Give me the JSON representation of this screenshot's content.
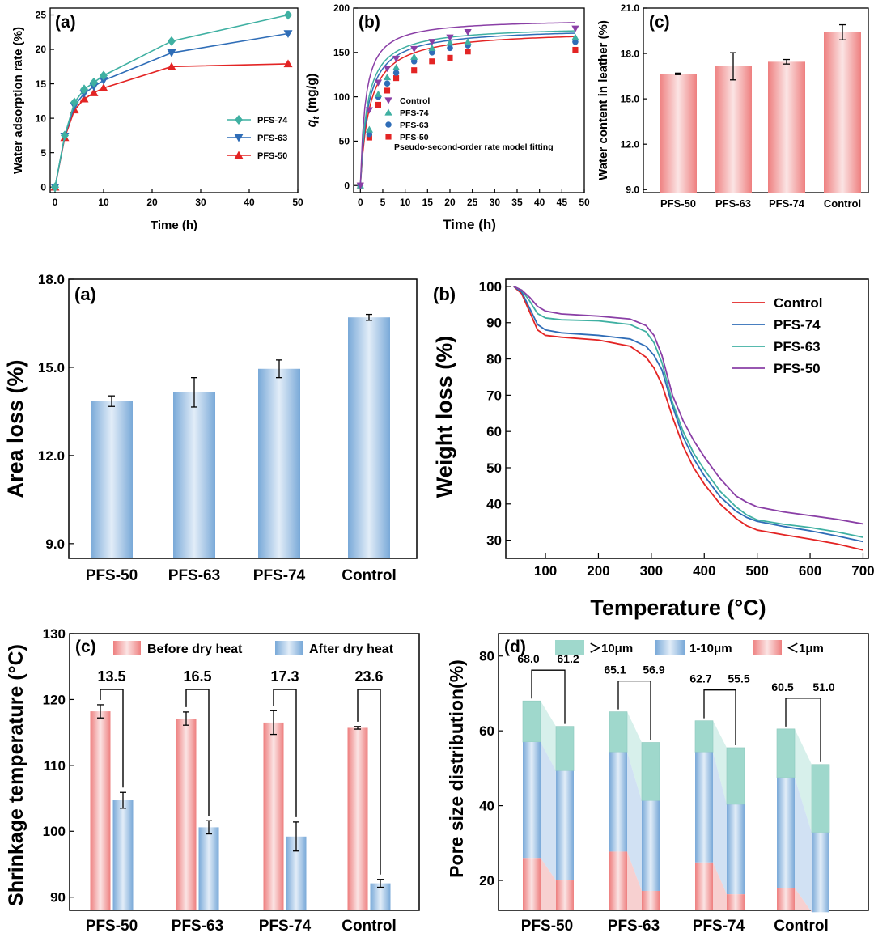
{
  "colors": {
    "pfs74": "#3fb0a2",
    "pfs63": "#2f6db7",
    "pfs50": "#e32424",
    "control": "#8a3fa6",
    "red_bar": "#f08b8b",
    "blue_bar": "#8fb8e0",
    "teal_fill": "#cdece6",
    "blue_fill": "#c6daf0",
    "red_fill": "#f5c4c4"
  },
  "chart_data": [
    {
      "id": "top_a",
      "type": "line",
      "panel_label": "(a)",
      "xlabel": "Time (h)",
      "ylabel": "Water adsorption rate (%)",
      "xlim": [
        -1,
        50
      ],
      "ylim": [
        -0.8,
        26
      ],
      "xticks": [
        0,
        10,
        20,
        30,
        40,
        50
      ],
      "yticks": [
        0,
        5,
        10,
        15,
        20,
        25
      ],
      "legend": "bottom-right",
      "series": [
        {
          "name": "PFS-74",
          "color": "#3fb0a2",
          "marker": "diamond",
          "x": [
            0,
            2,
            4,
            6,
            8,
            10,
            24,
            48
          ],
          "y": [
            0,
            7.5,
            12.3,
            14.2,
            15.2,
            16.2,
            21.2,
            25.0
          ]
        },
        {
          "name": "PFS-63",
          "color": "#2f6db7",
          "marker": "triangle-down",
          "x": [
            0,
            2,
            4,
            6,
            8,
            10,
            24,
            48
          ],
          "y": [
            0,
            7.4,
            11.8,
            13.6,
            14.6,
            15.5,
            19.5,
            22.3
          ]
        },
        {
          "name": "PFS-50",
          "color": "#e32424",
          "marker": "triangle-up",
          "x": [
            0,
            2,
            4,
            6,
            8,
            10,
            24,
            48
          ],
          "y": [
            0,
            7.2,
            11.2,
            12.8,
            13.7,
            14.4,
            17.5,
            17.9
          ]
        }
      ]
    },
    {
      "id": "top_b",
      "type": "scatter",
      "panel_label": "(b)",
      "xlabel": "Time (h)",
      "ylabel_main": "q",
      "ylabel_sub": "t",
      "ylabel_rest": " (mg/g)",
      "xlim": [
        -1.5,
        50
      ],
      "ylim": [
        -8,
        200
      ],
      "xticks": [
        0,
        5,
        10,
        15,
        20,
        25,
        30,
        35,
        40,
        45,
        50
      ],
      "yticks": [
        0,
        50,
        100,
        150,
        200
      ],
      "legend": "center-right",
      "legend_note": "Pseudo-second-order rate model fitting",
      "series": [
        {
          "name": "Control",
          "color": "#8a3fa6",
          "marker": "triangle-down",
          "qe": 188,
          "k": 0.0047,
          "x": [
            0,
            2,
            4,
            6,
            8,
            12,
            16,
            20,
            24,
            48
          ],
          "y": [
            0,
            85,
            116,
            132,
            143,
            154,
            162,
            167,
            173,
            177
          ]
        },
        {
          "name": "PFS-74",
          "color": "#3fb0a2",
          "marker": "triangle-up",
          "qe": 180,
          "k": 0.0036,
          "x": [
            0,
            2,
            4,
            6,
            8,
            12,
            16,
            20,
            24,
            48
          ],
          "y": [
            0,
            63,
            103,
            122,
            133,
            145,
            155,
            161,
            162,
            167
          ]
        },
        {
          "name": "PFS-63",
          "color": "#2f6db7",
          "marker": "circle",
          "qe": 178,
          "k": 0.0032,
          "x": [
            0,
            2,
            4,
            6,
            8,
            12,
            16,
            20,
            24,
            48
          ],
          "y": [
            0,
            58,
            100,
            115,
            127,
            140,
            150,
            155,
            158,
            162
          ]
        },
        {
          "name": "PFS-50",
          "color": "#e32424",
          "marker": "square",
          "qe": 175,
          "k": 0.0028,
          "x": [
            0,
            2,
            4,
            6,
            8,
            12,
            16,
            20,
            24,
            48
          ],
          "y": [
            0,
            54,
            91,
            107,
            121,
            130,
            140,
            144,
            151,
            153
          ]
        }
      ]
    },
    {
      "id": "top_c",
      "type": "bar",
      "panel_label": "(c)",
      "ylabel": "Water content in leather (%)",
      "categories": [
        "PFS-50",
        "PFS-63",
        "PFS-74",
        "Control"
      ],
      "values": [
        16.65,
        17.15,
        17.45,
        19.4
      ],
      "errors": [
        0.05,
        0.9,
        0.15,
        0.5
      ],
      "ylim": [
        8.8,
        21.0
      ],
      "yticks": [
        "9.0",
        "12.0",
        "15.0",
        "18.0",
        "21.0"
      ]
    },
    {
      "id": "mid_a",
      "type": "bar",
      "panel_label": "(a)",
      "ylabel": "Area loss (%)",
      "categories": [
        "PFS-50",
        "PFS-63",
        "PFS-74",
        "Control"
      ],
      "values": [
        13.85,
        14.15,
        14.95,
        16.7
      ],
      "errors": [
        0.18,
        0.5,
        0.3,
        0.1
      ],
      "ylim": [
        8.5,
        18.0
      ],
      "yticks": [
        "9.0",
        "12.0",
        "15.0",
        "18.0"
      ]
    },
    {
      "id": "mid_b",
      "type": "line",
      "panel_label": "(b)",
      "xlabel": "Temperature (°C)",
      "ylabel": "Weight loss (%)",
      "xlim": [
        25,
        710
      ],
      "ylim": [
        25,
        102
      ],
      "xticks": [
        100,
        200,
        300,
        400,
        500,
        600,
        700
      ],
      "yticks": [
        30,
        40,
        50,
        60,
        70,
        80,
        90,
        100
      ],
      "legend": "top-right",
      "series": [
        {
          "name": "Control",
          "color": "#e32424",
          "x": [
            40,
            55,
            70,
            85,
            100,
            130,
            200,
            260,
            290,
            305,
            320,
            340,
            360,
            380,
            400,
            430,
            460,
            480,
            500,
            550,
            600,
            650,
            700
          ],
          "y": [
            100,
            98,
            93,
            88,
            86.5,
            86,
            85.2,
            83.5,
            80.5,
            77.5,
            73,
            64,
            56,
            50,
            45.5,
            40,
            36,
            34,
            32.8,
            31.5,
            30.3,
            29,
            27.3
          ]
        },
        {
          "name": "PFS-74",
          "color": "#2f6db7",
          "x": [
            40,
            55,
            70,
            85,
            100,
            130,
            200,
            260,
            290,
            305,
            320,
            340,
            360,
            380,
            400,
            430,
            460,
            480,
            500,
            550,
            600,
            650,
            700
          ],
          "y": [
            100,
            98.5,
            94,
            89.5,
            88,
            87.2,
            86.5,
            85.5,
            83.5,
            81,
            77,
            67,
            58.5,
            52.5,
            47.8,
            42,
            38,
            36.3,
            35.2,
            33.8,
            32.6,
            31.2,
            29.6
          ]
        },
        {
          "name": "PFS-63",
          "color": "#3fb0a2",
          "x": [
            40,
            55,
            70,
            85,
            100,
            130,
            200,
            260,
            290,
            305,
            320,
            340,
            360,
            380,
            400,
            430,
            460,
            480,
            500,
            550,
            600,
            650,
            700
          ],
          "y": [
            100,
            99,
            96,
            92.5,
            91.3,
            90.8,
            90.5,
            89.5,
            87.5,
            84.5,
            79,
            68,
            60,
            54,
            49.5,
            43.5,
            39.2,
            37,
            35.6,
            34.4,
            33.5,
            32.3,
            30.8
          ]
        },
        {
          "name": "PFS-50",
          "color": "#8a3fa6",
          "x": [
            40,
            55,
            70,
            85,
            100,
            130,
            200,
            260,
            290,
            305,
            320,
            340,
            360,
            380,
            400,
            430,
            460,
            480,
            500,
            550,
            600,
            650,
            700
          ],
          "y": [
            100,
            99,
            97,
            94.5,
            93.2,
            92.4,
            91.8,
            91,
            89.2,
            86.5,
            81,
            70,
            63,
            57.5,
            53,
            47,
            42.2,
            40.5,
            39.2,
            37.8,
            36.8,
            35.8,
            34.5
          ]
        }
      ]
    },
    {
      "id": "bot_c",
      "type": "bar",
      "panel_label": "(c)",
      "ylabel": "Shrinkage temperature (°C)",
      "categories": [
        "PFS-50",
        "PFS-63",
        "PFS-74",
        "Control"
      ],
      "ylim": [
        88,
        130
      ],
      "yticks": [
        90,
        100,
        110,
        120,
        130
      ],
      "series": [
        {
          "name": "Before dry heat",
          "color": "#f08b8b",
          "values": [
            118.2,
            117.1,
            116.5,
            115.7
          ],
          "errors": [
            1.0,
            1.0,
            1.8,
            0.2
          ]
        },
        {
          "name": "After dry heat",
          "color": "#8fb8e0",
          "values": [
            104.7,
            100.6,
            99.2,
            92.1
          ],
          "errors": [
            1.2,
            1.0,
            2.2,
            0.6
          ]
        }
      ],
      "differences": [
        "13.5",
        "16.5",
        "17.3",
        "23.6"
      ],
      "legend": "top"
    },
    {
      "id": "bot_d",
      "type": "bar",
      "subtype": "stacked",
      "panel_label": "(d)",
      "ylabel": "Pore size distribution(%)",
      "categories": [
        "PFS-50",
        "PFS-63",
        "PFS-74",
        "Control"
      ],
      "ylim": [
        12,
        86
      ],
      "yticks": [
        20,
        40,
        60,
        80
      ],
      "legend": "top",
      "legend_entries": [
        "＞10μm",
        "1-10μm",
        "＜1μm"
      ],
      "before": {
        "lt1": [
          26,
          27.7,
          24.8,
          18
        ],
        "mid_top": [
          57,
          54.3,
          54.3,
          47.5
        ],
        "total": [
          68.0,
          65.1,
          62.7,
          60.5
        ]
      },
      "after": {
        "lt1": [
          20,
          17.2,
          16.3,
          11.5
        ],
        "mid_top": [
          49.3,
          41.3,
          40.3,
          32.8
        ],
        "total": [
          61.2,
          56.9,
          55.5,
          51.0
        ]
      },
      "total_labels_before": [
        "68.0",
        "65.1",
        "62.7",
        "60.5"
      ],
      "total_labels_after": [
        "61.2",
        "56.9",
        "55.5",
        "51.0"
      ]
    }
  ]
}
